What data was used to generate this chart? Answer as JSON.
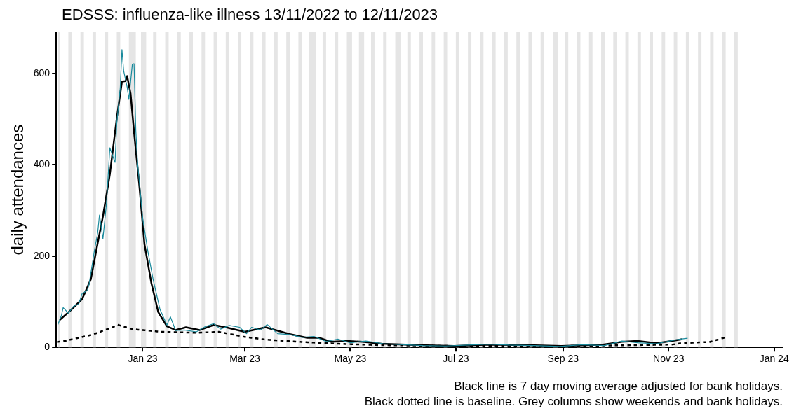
{
  "chart_data": {
    "type": "line",
    "title": "EDSSS: influenza-like illness 13/11/2022 to 12/11/2023",
    "ylabel": "daily attendances",
    "annotations": [
      "Black line is 7 day moving average adjusted for bank holidays.",
      "Black dotted line is baseline. Grey columns show weekends and bank holidays."
    ],
    "xlim": [
      "2022-11-12",
      "2024-01-06"
    ],
    "xticks": [
      {
        "value": "2023-01-01",
        "label": "Jan 23"
      },
      {
        "value": "2023-03-01",
        "label": "Mar 23"
      },
      {
        "value": "2023-05-01",
        "label": "May 23"
      },
      {
        "value": "2023-07-01",
        "label": "Jul 23"
      },
      {
        "value": "2023-09-01",
        "label": "Sep 23"
      },
      {
        "value": "2023-11-01",
        "label": "Nov 23"
      },
      {
        "value": "2024-01-01",
        "label": "Jan 24"
      }
    ],
    "ylim": [
      0,
      690
    ],
    "yticks": [
      0,
      200,
      400,
      600
    ],
    "grid": false,
    "legend": false,
    "series": [
      {
        "color": "#1a8a9c",
        "line_style": "solid",
        "x": [
          "2022-11-13",
          "2022-11-15",
          "2022-11-16",
          "2022-11-19",
          "2022-11-22",
          "2022-11-25",
          "2022-11-27",
          "2022-11-30",
          "2022-12-01",
          "2022-12-04",
          "2022-12-06",
          "2022-12-07",
          "2022-12-09",
          "2022-12-11",
          "2022-12-13",
          "2022-12-16",
          "2022-12-17",
          "2022-12-19",
          "2022-12-20",
          "2022-12-21",
          "2022-12-23",
          "2022-12-24",
          "2022-12-26",
          "2022-12-27",
          "2022-12-28",
          "2022-12-29",
          "2023-01-01",
          "2023-01-04",
          "2023-01-07",
          "2023-01-11",
          "2023-01-15",
          "2023-01-17",
          "2023-01-20",
          "2023-01-25",
          "2023-02-01",
          "2023-02-06",
          "2023-02-11",
          "2023-02-15",
          "2023-02-20",
          "2023-02-26",
          "2023-03-02",
          "2023-03-05",
          "2023-03-10",
          "2023-03-14",
          "2023-03-20",
          "2023-03-27",
          "2023-04-03",
          "2023-04-10",
          "2023-04-17",
          "2023-04-24",
          "2023-05-01",
          "2023-05-10",
          "2023-05-20",
          "2023-06-01",
          "2023-06-12",
          "2023-06-25",
          "2023-07-08",
          "2023-07-20",
          "2023-08-01",
          "2023-08-15",
          "2023-08-30",
          "2023-09-12",
          "2023-09-25",
          "2023-10-05",
          "2023-10-14",
          "2023-10-25",
          "2023-11-03",
          "2023-11-08",
          "2023-11-12"
        ],
        "values": [
          50,
          70,
          87,
          75,
          90,
          95,
          118,
          125,
          138,
          210,
          252,
          290,
          238,
          313,
          437,
          405,
          491,
          568,
          652,
          605,
          570,
          543,
          620,
          621,
          476,
          405,
          282,
          210,
          149,
          83,
          49,
          67,
          37,
          38,
          34,
          45,
          52,
          40,
          48,
          44,
          30,
          44,
          38,
          50,
          30,
          28,
          22,
          24,
          13,
          18,
          10,
          14,
          8,
          6,
          4,
          3,
          5,
          7,
          5,
          4,
          2,
          6,
          4,
          14,
          10,
          8,
          15,
          18,
          20
        ]
      },
      {
        "color": "#000000",
        "line_style": "solid",
        "x": [
          "2022-11-14",
          "2022-11-20",
          "2022-11-27",
          "2022-12-02",
          "2022-12-06",
          "2022-12-09",
          "2022-12-13",
          "2022-12-17",
          "2022-12-20",
          "2022-12-22",
          "2022-12-23",
          "2022-12-25",
          "2022-12-27",
          "2022-12-30",
          "2023-01-02",
          "2023-01-06",
          "2023-01-10",
          "2023-01-15",
          "2023-01-20",
          "2023-01-26",
          "2023-02-03",
          "2023-02-11",
          "2023-02-18",
          "2023-03-01",
          "2023-03-13",
          "2023-03-27",
          "2023-04-06",
          "2023-04-13",
          "2023-04-20",
          "2023-04-29",
          "2023-05-08",
          "2023-05-19",
          "2023-06-10",
          "2023-06-30",
          "2023-07-20",
          "2023-08-10",
          "2023-08-31",
          "2023-09-24",
          "2023-10-05",
          "2023-10-14",
          "2023-10-25",
          "2023-11-03",
          "2023-11-09"
        ],
        "values": [
          60,
          80,
          106,
          149,
          229,
          287,
          379,
          502,
          582,
          583,
          594,
          555,
          471,
          356,
          226,
          141,
          77,
          46,
          38,
          44,
          38,
          49,
          44,
          34,
          44,
          29,
          21,
          21,
          12,
          14,
          12,
          8,
          5,
          3,
          6,
          5,
          3,
          6,
          12,
          14,
          9,
          14,
          18
        ]
      },
      {
        "color": "#000000",
        "line_style": "dotted",
        "x": [
          "2022-11-13",
          "2022-11-17",
          "2022-12-03",
          "2022-12-18",
          "2022-12-26",
          "2023-01-12",
          "2023-02-01",
          "2023-02-14",
          "2023-03-01",
          "2023-03-13",
          "2023-04-02",
          "2023-04-23",
          "2023-05-17",
          "2023-07-01",
          "2023-09-01",
          "2023-09-24",
          "2023-11-03",
          "2023-11-08",
          "2023-11-25",
          "2023-12-03"
        ],
        "values": [
          12,
          14,
          28,
          49,
          40,
          34,
          32,
          34,
          23,
          17,
          12,
          8,
          5,
          3,
          3,
          4,
          6,
          9,
          12,
          21
        ]
      }
    ],
    "bands": [
      {
        "axis": "x",
        "from": "2022-11-13",
        "to": "2022-11-14",
        "color": "#e5e5e5"
      },
      {
        "axis": "x",
        "from": "2022-11-19",
        "to": "2022-11-21",
        "color": "#e5e5e5"
      },
      {
        "axis": "x",
        "from": "2022-11-26",
        "to": "2022-11-28",
        "color": "#e5e5e5"
      },
      {
        "axis": "x",
        "from": "2022-12-03",
        "to": "2022-12-05",
        "color": "#e5e5e5"
      },
      {
        "axis": "x",
        "from": "2022-12-10",
        "to": "2022-12-12",
        "color": "#e5e5e5"
      },
      {
        "axis": "x",
        "from": "2022-12-17",
        "to": "2022-12-19",
        "color": "#e5e5e5"
      },
      {
        "axis": "x",
        "from": "2022-12-24",
        "to": "2022-12-28",
        "color": "#e5e5e5"
      },
      {
        "axis": "x",
        "from": "2022-12-31",
        "to": "2023-01-03",
        "color": "#e5e5e5"
      },
      {
        "axis": "x",
        "from": "2023-01-07",
        "to": "2023-01-09",
        "color": "#e5e5e5"
      },
      {
        "axis": "x",
        "from": "2023-01-14",
        "to": "2023-01-16",
        "color": "#e5e5e5"
      },
      {
        "axis": "x",
        "from": "2023-01-21",
        "to": "2023-01-23",
        "color": "#e5e5e5"
      },
      {
        "axis": "x",
        "from": "2023-01-28",
        "to": "2023-01-30",
        "color": "#e5e5e5"
      },
      {
        "axis": "x",
        "from": "2023-02-04",
        "to": "2023-02-06",
        "color": "#e5e5e5"
      },
      {
        "axis": "x",
        "from": "2023-02-11",
        "to": "2023-02-13",
        "color": "#e5e5e5"
      },
      {
        "axis": "x",
        "from": "2023-02-18",
        "to": "2023-02-20",
        "color": "#e5e5e5"
      },
      {
        "axis": "x",
        "from": "2023-02-25",
        "to": "2023-02-27",
        "color": "#e5e5e5"
      },
      {
        "axis": "x",
        "from": "2023-03-04",
        "to": "2023-03-06",
        "color": "#e5e5e5"
      },
      {
        "axis": "x",
        "from": "2023-03-11",
        "to": "2023-03-13",
        "color": "#e5e5e5"
      },
      {
        "axis": "x",
        "from": "2023-03-18",
        "to": "2023-03-20",
        "color": "#e5e5e5"
      },
      {
        "axis": "x",
        "from": "2023-03-25",
        "to": "2023-03-27",
        "color": "#e5e5e5"
      },
      {
        "axis": "x",
        "from": "2023-04-01",
        "to": "2023-04-03",
        "color": "#e5e5e5"
      },
      {
        "axis": "x",
        "from": "2023-04-07",
        "to": "2023-04-11",
        "color": "#e5e5e5"
      },
      {
        "axis": "x",
        "from": "2023-04-15",
        "to": "2023-04-17",
        "color": "#e5e5e5"
      },
      {
        "axis": "x",
        "from": "2023-04-22",
        "to": "2023-04-24",
        "color": "#e5e5e5"
      },
      {
        "axis": "x",
        "from": "2023-04-29",
        "to": "2023-05-02",
        "color": "#e5e5e5"
      },
      {
        "axis": "x",
        "from": "2023-05-06",
        "to": "2023-05-09",
        "color": "#e5e5e5"
      },
      {
        "axis": "x",
        "from": "2023-05-13",
        "to": "2023-05-15",
        "color": "#e5e5e5"
      },
      {
        "axis": "x",
        "from": "2023-05-20",
        "to": "2023-05-22",
        "color": "#e5e5e5"
      },
      {
        "axis": "x",
        "from": "2023-05-27",
        "to": "2023-05-30",
        "color": "#e5e5e5"
      },
      {
        "axis": "x",
        "from": "2023-06-03",
        "to": "2023-06-05",
        "color": "#e5e5e5"
      },
      {
        "axis": "x",
        "from": "2023-06-10",
        "to": "2023-06-12",
        "color": "#e5e5e5"
      },
      {
        "axis": "x",
        "from": "2023-06-17",
        "to": "2023-06-19",
        "color": "#e5e5e5"
      },
      {
        "axis": "x",
        "from": "2023-06-24",
        "to": "2023-06-26",
        "color": "#e5e5e5"
      },
      {
        "axis": "x",
        "from": "2023-07-01",
        "to": "2023-07-03",
        "color": "#e5e5e5"
      },
      {
        "axis": "x",
        "from": "2023-07-08",
        "to": "2023-07-10",
        "color": "#e5e5e5"
      },
      {
        "axis": "x",
        "from": "2023-07-15",
        "to": "2023-07-17",
        "color": "#e5e5e5"
      },
      {
        "axis": "x",
        "from": "2023-07-22",
        "to": "2023-07-24",
        "color": "#e5e5e5"
      },
      {
        "axis": "x",
        "from": "2023-07-29",
        "to": "2023-07-31",
        "color": "#e5e5e5"
      },
      {
        "axis": "x",
        "from": "2023-08-05",
        "to": "2023-08-07",
        "color": "#e5e5e5"
      },
      {
        "axis": "x",
        "from": "2023-08-12",
        "to": "2023-08-14",
        "color": "#e5e5e5"
      },
      {
        "axis": "x",
        "from": "2023-08-19",
        "to": "2023-08-21",
        "color": "#e5e5e5"
      },
      {
        "axis": "x",
        "from": "2023-08-26",
        "to": "2023-08-29",
        "color": "#e5e5e5"
      },
      {
        "axis": "x",
        "from": "2023-09-02",
        "to": "2023-09-04",
        "color": "#e5e5e5"
      },
      {
        "axis": "x",
        "from": "2023-09-09",
        "to": "2023-09-11",
        "color": "#e5e5e5"
      },
      {
        "axis": "x",
        "from": "2023-09-16",
        "to": "2023-09-18",
        "color": "#e5e5e5"
      },
      {
        "axis": "x",
        "from": "2023-09-23",
        "to": "2023-09-25",
        "color": "#e5e5e5"
      },
      {
        "axis": "x",
        "from": "2023-09-30",
        "to": "2023-10-02",
        "color": "#e5e5e5"
      },
      {
        "axis": "x",
        "from": "2023-10-07",
        "to": "2023-10-09",
        "color": "#e5e5e5"
      },
      {
        "axis": "x",
        "from": "2023-10-14",
        "to": "2023-10-16",
        "color": "#e5e5e5"
      },
      {
        "axis": "x",
        "from": "2023-10-21",
        "to": "2023-10-23",
        "color": "#e5e5e5"
      },
      {
        "axis": "x",
        "from": "2023-10-28",
        "to": "2023-10-30",
        "color": "#e5e5e5"
      },
      {
        "axis": "x",
        "from": "2023-11-04",
        "to": "2023-11-06",
        "color": "#e5e5e5"
      },
      {
        "axis": "x",
        "from": "2023-11-11",
        "to": "2023-11-13",
        "color": "#e5e5e5"
      },
      {
        "axis": "x",
        "from": "2023-11-18",
        "to": "2023-11-20",
        "color": "#e5e5e5"
      },
      {
        "axis": "x",
        "from": "2023-11-25",
        "to": "2023-11-27",
        "color": "#e5e5e5"
      },
      {
        "axis": "x",
        "from": "2023-12-02",
        "to": "2023-12-04",
        "color": "#e5e5e5"
      },
      {
        "axis": "x",
        "from": "2023-12-09",
        "to": "2023-12-11",
        "color": "#e5e5e5"
      }
    ]
  }
}
